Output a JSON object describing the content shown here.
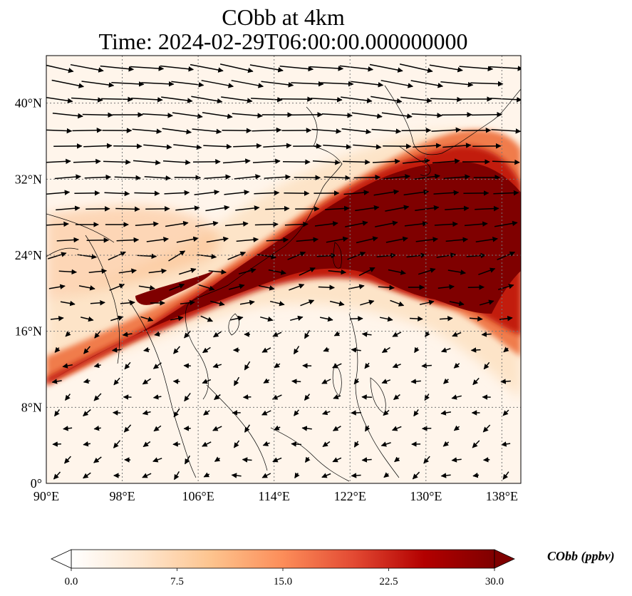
{
  "title": {
    "line1": "CObb at 4km",
    "line2": "Time: 2024-02-29T06:00:00.000000000"
  },
  "map": {
    "extent": {
      "lon_min": 90,
      "lon_max": 140,
      "lat_min": 0,
      "lat_max": 45
    },
    "x_ticks": [
      {
        "value": 90,
        "label": "90°E"
      },
      {
        "value": 98,
        "label": "98°E"
      },
      {
        "value": 106,
        "label": "106°E"
      },
      {
        "value": 114,
        "label": "114°E"
      },
      {
        "value": 122,
        "label": "122°E"
      },
      {
        "value": 130,
        "label": "130°E"
      },
      {
        "value": 138,
        "label": "138°E"
      }
    ],
    "y_ticks": [
      {
        "value": 0,
        "label": "0°"
      },
      {
        "value": 8,
        "label": "8°N"
      },
      {
        "value": 16,
        "label": "16°N"
      },
      {
        "value": 24,
        "label": "24°N"
      },
      {
        "value": 32,
        "label": "32°N"
      },
      {
        "value": 40,
        "label": "40°N"
      }
    ],
    "gridlines": "dotted",
    "background_color": "#fff5eb",
    "plume_colors": [
      "#fde4c8",
      "#fcb882",
      "#f07b4c",
      "#c21a0c",
      "#7f0000"
    ]
  },
  "colorbar": {
    "label": "CObb (ppbv)",
    "min": 0.0,
    "max": 30.0,
    "extend": "both",
    "ticks": [
      {
        "value": 0.0,
        "label": "0.0"
      },
      {
        "value": 7.5,
        "label": "7.5"
      },
      {
        "value": 15.0,
        "label": "15.0"
      },
      {
        "value": 22.5,
        "label": "22.5"
      },
      {
        "value": 30.0,
        "label": "30.0"
      }
    ],
    "colors": [
      "#ffffff",
      "#fee6ce",
      "#fdc38d",
      "#fc8d59",
      "#e34a33",
      "#b30000",
      "#7f0000"
    ]
  }
}
